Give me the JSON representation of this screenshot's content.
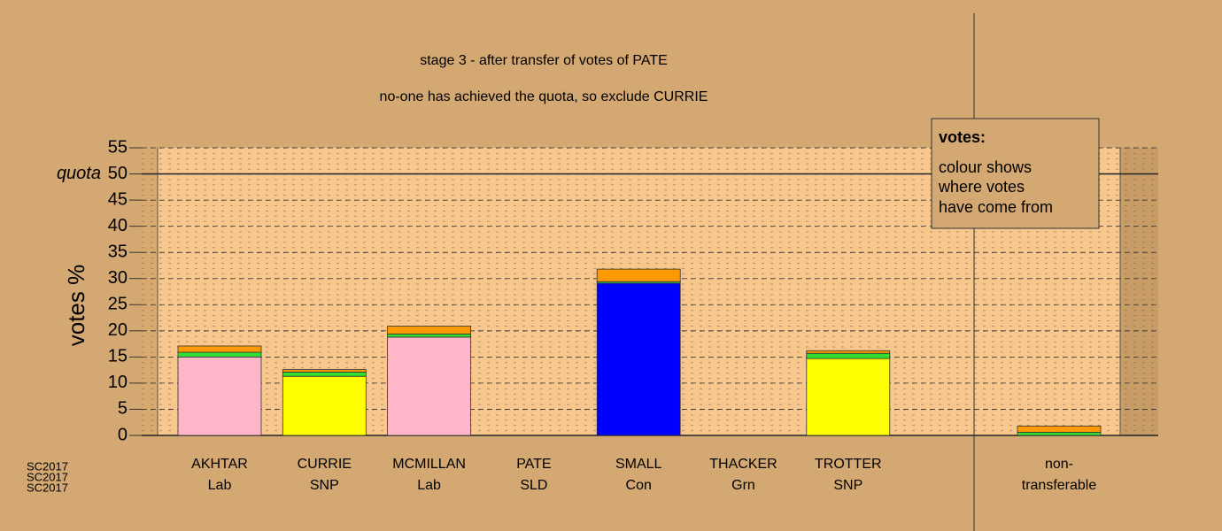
{
  "chart_data": {
    "type": "bar",
    "stacked": true,
    "title": "stage 3 - after transfer of votes of PATE",
    "subtitle": "no-one has achieved the quota, so exclude CURRIE",
    "y_label": "votes %",
    "categories": [
      "AKHTAR",
      "CURRIE",
      "MCMILLAN",
      "PATE",
      "SMALL",
      "THACKER",
      "TROTTER",
      "non-"
    ],
    "parties": [
      "Lab",
      "SNP",
      "Lab",
      "SLD",
      "Con",
      "Grn",
      "SNP",
      "transferable"
    ],
    "series": [
      {
        "colors": [
          "#ffb6c8",
          "#ffff00",
          "#ffb6c8",
          "#ffff66",
          "#0000ff",
          "#33cc33",
          "#ffff00",
          null
        ],
        "values": [
          15.0,
          11.3,
          18.8,
          0,
          29.1,
          0,
          14.7,
          null
        ]
      },
      {
        "color": "#33dd33",
        "values": [
          0.9,
          0.8,
          0.6,
          0,
          0.3,
          0,
          1.0,
          0.6
        ]
      },
      {
        "color": "#ff9900",
        "values": [
          1.2,
          0.5,
          1.5,
          0,
          2.4,
          0,
          0.5,
          1.2
        ]
      }
    ],
    "ylim": [
      0,
      55
    ],
    "yticks": [
      0,
      5,
      10,
      15,
      20,
      25,
      30,
      35,
      40,
      45,
      50,
      55
    ],
    "quota": {
      "value": 50,
      "label": "quota"
    },
    "grid": true,
    "note": {
      "title": "votes:",
      "lines": [
        "colour shows",
        "where votes",
        "have come from"
      ]
    },
    "watermark": [
      "SC2017",
      "SC2017",
      "SC2017"
    ]
  }
}
